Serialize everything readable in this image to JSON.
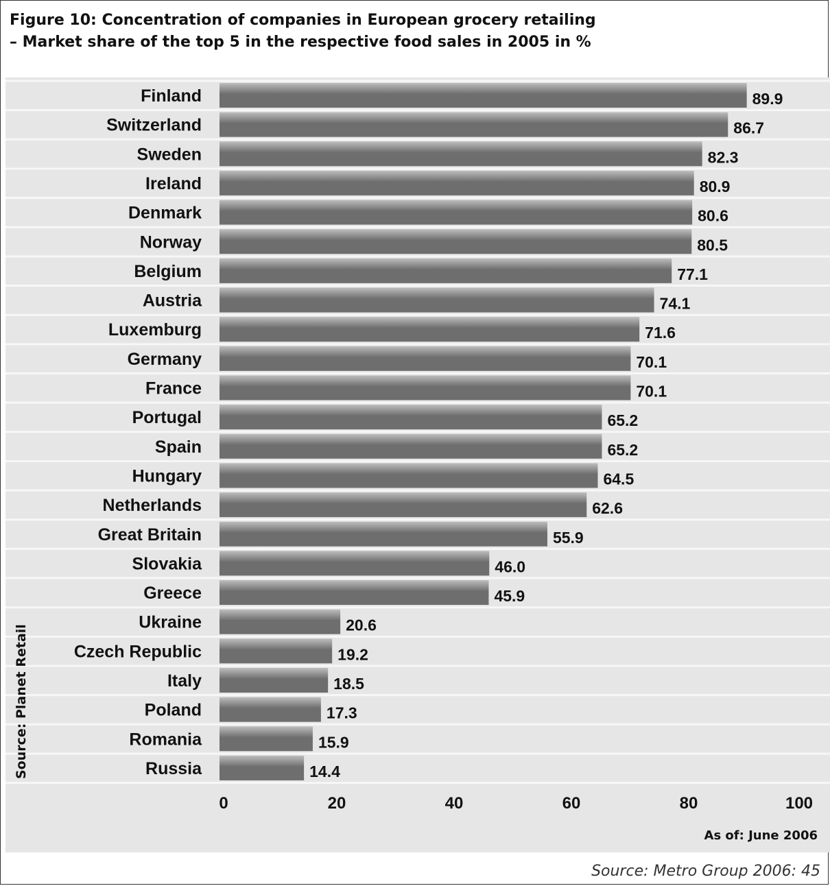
{
  "figure": {
    "title_line1": "Figure 10: Concentration of companies in European grocery retailing",
    "title_line2": "– Market share of the top 5 in the respective food sales in 2005 in %",
    "side_source": "Source: Planet Retail",
    "as_of": "As of: June 2006",
    "footer_source": "Source: Metro Group 2006: 45"
  },
  "colors": {
    "background": "#e6e6e6",
    "gridline": "#f7f7f7",
    "bar_light": "#bdbdbd",
    "bar_dark": "#6e6e6e"
  },
  "chart_data": {
    "type": "bar",
    "orientation": "horizontal",
    "title": "Figure 10: Concentration of companies in European grocery retailing – Market share of the top 5 in the respective food sales in 2005 in %",
    "categories": [
      "Finland",
      "Switzerland",
      "Sweden",
      "Ireland",
      "Denmark",
      "Norway",
      "Belgium",
      "Austria",
      "Luxemburg",
      "Germany",
      "France",
      "Portugal",
      "Spain",
      "Hungary",
      "Netherlands",
      "Great Britain",
      "Slovakia",
      "Greece",
      "Ukraine",
      "Czech Republic",
      "Italy",
      "Poland",
      "Romania",
      "Russia"
    ],
    "values": [
      89.9,
      86.7,
      82.3,
      80.9,
      80.6,
      80.5,
      77.1,
      74.1,
      71.6,
      70.1,
      70.1,
      65.2,
      65.2,
      64.5,
      62.6,
      55.9,
      46.0,
      45.9,
      20.6,
      19.2,
      18.5,
      17.3,
      15.9,
      14.4
    ],
    "value_labels": [
      "89.9",
      "86.7",
      "82.3",
      "80.9",
      "80.6",
      "80.5",
      "77.1",
      "74.1",
      "71.6",
      "70.1",
      "70.1",
      "65.2",
      "65.2",
      "64.5",
      "62.6",
      "55.9",
      "46.0",
      "45.9",
      "20.6",
      "19.2",
      "18.5",
      "17.3",
      "15.9",
      "14.4"
    ],
    "xticks": [
      "0",
      "20",
      "40",
      "60",
      "80",
      "100"
    ],
    "xlim": [
      0,
      100
    ],
    "grid": true,
    "xlabel": "",
    "ylabel": ""
  }
}
